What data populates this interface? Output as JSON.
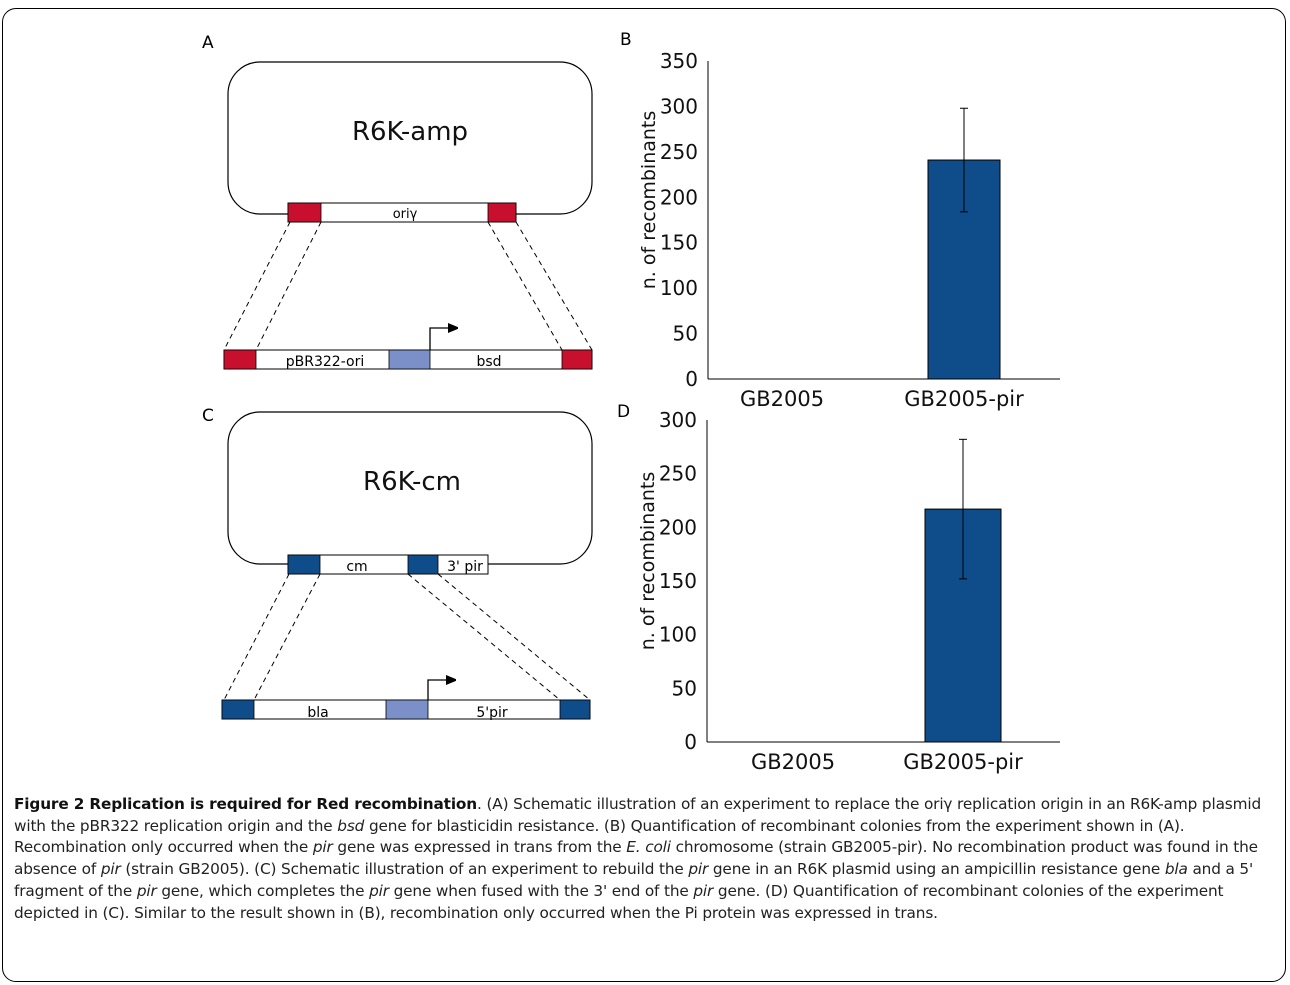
{
  "figure": {
    "panel_a": {
      "label": "A",
      "plasmid_name": "R6K-amp",
      "origin_label": "oriγ",
      "insert_left_label": "pBR322-ori",
      "insert_right_label": "bsd",
      "colors": {
        "homology": "#c8102e",
        "promoter": "#7b8fc8"
      }
    },
    "panel_c": {
      "label": "C",
      "plasmid_name": "R6K-cm",
      "segment_label": "cm",
      "pir3_label": "3' pir",
      "insert_left_label": "bla",
      "insert_right_label": "5'pir",
      "colors": {
        "homology": "#0f4c8a",
        "promoter": "#7b8fc8"
      }
    },
    "caption": {
      "title": "Figure 2 Replication is required for Red recombination",
      "text_1": ". (A) Schematic illustration of an experiment to replace the oriγ replication origin in an R6K-amp plasmid with the pBR322 replication origin and the ",
      "bsd": "bsd",
      "text_2": " gene for blasticidin resistance. (B) Quantification of recombinant colonies from the experiment shown in (A). Recombination only occurred when the ",
      "pir_1": "pir",
      "text_3": " gene was expressed in trans from the ",
      "ecoli": "E. coli",
      "text_4": " chromosome (strain GB2005-pir). No recombination product was found in the absence of ",
      "pir_2": "pir",
      "text_5": " (strain GB2005). (C) Schematic illustration of an experiment to rebuild the ",
      "pir_3": "pir",
      "text_6": " gene in an R6K plasmid using an ampicillin resistance gene ",
      "bla": "bla",
      "text_7": " and a 5' fragment of the ",
      "pir_4": "pir",
      "text_8": " gene, which completes the ",
      "pir_5": "pir",
      "text_9": " gene when fused with the 3' end of the ",
      "pir_6": "pir",
      "text_10": " gene. (D) Quantification of recombinant colonies of the experiment depicted in (C). Similar to the result shown in (B), recombination only occurred when the Pi protein was expressed in trans."
    }
  },
  "chart_data": [
    {
      "panel": "B",
      "type": "bar",
      "categories": [
        "GB2005",
        "GB2005-pir"
      ],
      "values": [
        0,
        241
      ],
      "error": [
        0,
        57
      ],
      "ylabel": "n. of recombinants",
      "ylim": [
        0,
        350
      ],
      "yticks": [
        0,
        50,
        100,
        150,
        200,
        250,
        300,
        350
      ],
      "grid": false,
      "bar_color": "#0f4c8a"
    },
    {
      "panel": "D",
      "type": "bar",
      "categories": [
        "GB2005",
        "GB2005-pir"
      ],
      "values": [
        0,
        217
      ],
      "error": [
        0,
        65
      ],
      "ylabel": "n. of recombinants",
      "ylim": [
        0,
        300
      ],
      "yticks": [
        0,
        50,
        100,
        150,
        200,
        250,
        300
      ],
      "grid": false,
      "bar_color": "#0f4c8a"
    }
  ]
}
